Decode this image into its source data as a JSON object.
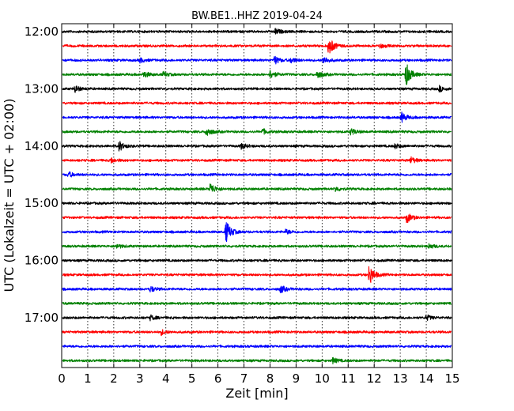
{
  "chart_data": {
    "type": "line",
    "title": "BW.BE1..HHZ 2019-04-24",
    "xlabel": "Zeit  [min]",
    "ylabel": "UTC (Lokalzeit = UTC + 02:00)",
    "xlim": [
      0,
      15
    ],
    "x_ticks": [
      "0",
      "1",
      "2",
      "3",
      "4",
      "5",
      "6",
      "7",
      "8",
      "9",
      "10",
      "11",
      "12",
      "13",
      "14",
      "15"
    ],
    "y_ticks": [
      "12:00",
      "13:00",
      "14:00",
      "15:00",
      "16:00",
      "17:00"
    ],
    "grid": "vertical dotted",
    "trace_colors": [
      "#000000",
      "#ff0000",
      "#0000ff",
      "#008000"
    ],
    "traces": [
      {
        "start": "12:00",
        "events": [
          [
            8.2,
            0.3
          ]
        ]
      },
      {
        "start": "12:15",
        "events": [
          [
            10.25,
            1.0
          ],
          [
            12.2,
            0.25
          ]
        ]
      },
      {
        "start": "12:30",
        "events": [
          [
            3.0,
            0.25
          ],
          [
            8.15,
            0.5
          ],
          [
            8.8,
            0.3
          ],
          [
            10.05,
            0.4
          ]
        ]
      },
      {
        "start": "12:45",
        "events": [
          [
            3.15,
            0.35
          ],
          [
            3.9,
            0.25
          ],
          [
            8.0,
            0.45
          ],
          [
            9.8,
            0.45
          ],
          [
            13.2,
            1.4
          ]
        ]
      },
      {
        "start": "13:00",
        "events": [
          [
            0.5,
            0.35
          ],
          [
            14.5,
            0.3
          ]
        ]
      },
      {
        "start": "13:15",
        "events": []
      },
      {
        "start": "13:30",
        "events": [
          [
            13.05,
            0.5
          ]
        ]
      },
      {
        "start": "13:45",
        "events": [
          [
            5.55,
            0.55
          ],
          [
            7.7,
            0.3
          ],
          [
            11.1,
            0.35
          ]
        ]
      },
      {
        "start": "14:00",
        "events": [
          [
            2.2,
            0.55
          ],
          [
            6.9,
            0.3
          ],
          [
            12.8,
            0.25
          ]
        ]
      },
      {
        "start": "14:15",
        "events": [
          [
            1.9,
            0.25
          ],
          [
            13.4,
            0.35
          ]
        ]
      },
      {
        "start": "14:30",
        "events": [
          [
            0.25,
            0.3
          ]
        ]
      },
      {
        "start": "14:45",
        "events": [
          [
            5.7,
            0.65
          ],
          [
            10.5,
            0.25
          ]
        ]
      },
      {
        "start": "15:00",
        "events": []
      },
      {
        "start": "15:15",
        "events": [
          [
            13.25,
            0.55
          ]
        ]
      },
      {
        "start": "15:30",
        "events": [
          [
            6.3,
            1.25
          ],
          [
            8.6,
            0.25
          ]
        ]
      },
      {
        "start": "15:45",
        "events": [
          [
            2.1,
            0.25
          ],
          [
            14.1,
            0.25
          ]
        ]
      },
      {
        "start": "16:00",
        "events": []
      },
      {
        "start": "16:15",
        "events": [
          [
            11.8,
            1.1
          ]
        ]
      },
      {
        "start": "16:30",
        "events": [
          [
            3.4,
            0.3
          ],
          [
            8.4,
            0.4
          ]
        ]
      },
      {
        "start": "16:45",
        "events": []
      },
      {
        "start": "17:00",
        "events": [
          [
            3.4,
            0.25
          ],
          [
            14.0,
            0.3
          ]
        ]
      },
      {
        "start": "17:15",
        "events": [
          [
            3.8,
            0.3
          ]
        ]
      },
      {
        "start": "17:30",
        "events": []
      },
      {
        "start": "17:45",
        "events": [
          [
            10.4,
            0.3
          ]
        ]
      }
    ]
  }
}
